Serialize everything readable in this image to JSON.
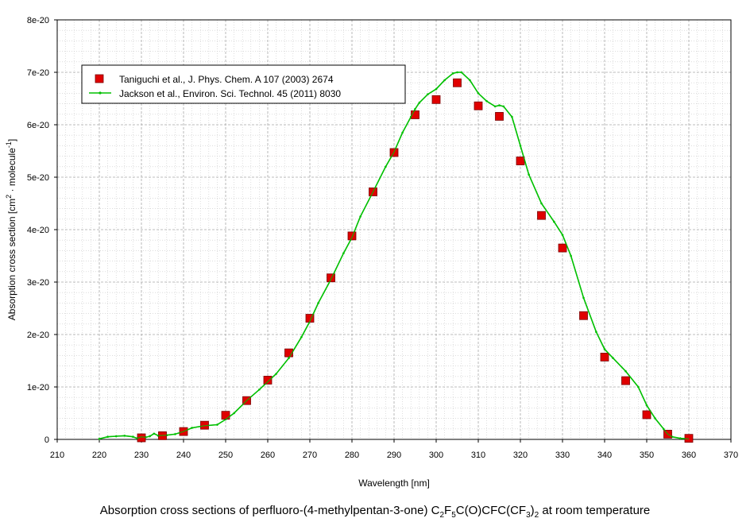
{
  "chart_data": {
    "type": "scatter",
    "xlabel": "Wavelength [nm]",
    "ylabel": "Absorption cross section [cm² · molecule⁻¹]",
    "xlim": [
      210,
      370
    ],
    "ylim": [
      0,
      8e-20
    ],
    "x_ticks": [
      "210",
      "220",
      "230",
      "240",
      "250",
      "260",
      "270",
      "280",
      "290",
      "300",
      "310",
      "320",
      "330",
      "340",
      "350",
      "360",
      "370"
    ],
    "y_ticks": [
      "0",
      "1e-20",
      "2e-20",
      "3e-20",
      "4e-20",
      "5e-20",
      "6e-20",
      "7e-20",
      "8e-20"
    ],
    "grid": true,
    "legend_position": "top-left",
    "series": [
      {
        "name": "Taniguchi et al., J. Phys. Chem. A 107 (2003) 2674",
        "style": "markers",
        "marker": "square",
        "color": "#e00000",
        "x": [
          230,
          235,
          240,
          245,
          250,
          255,
          260,
          265,
          270,
          275,
          280,
          285,
          290,
          295,
          300,
          305,
          310,
          315,
          320,
          325,
          330,
          335,
          340,
          345,
          350,
          355,
          360
        ],
        "values": [
          3e-22,
          7e-22,
          1.5e-21,
          2.7e-21,
          4.6e-21,
          7.4e-21,
          1.13e-20,
          1.65e-20,
          2.31e-20,
          3.08e-20,
          3.88e-20,
          4.72e-20,
          5.47e-20,
          6.19e-20,
          6.48e-20,
          6.8e-20,
          6.36e-20,
          6.16e-20,
          5.31e-20,
          4.27e-20,
          3.65e-20,
          2.36e-20,
          1.57e-20,
          1.12e-20,
          4.7e-21,
          1e-21,
          2e-22
        ]
      },
      {
        "name": "Jackson et al., Environ. Sci. Technol. 45 (2011) 8030",
        "style": "line",
        "color": "#00c000",
        "x": [
          220,
          222,
          224,
          226,
          228,
          229,
          230,
          231,
          232,
          233,
          234,
          236,
          238,
          240,
          242,
          245,
          248,
          250,
          252,
          255,
          258,
          260,
          262,
          265,
          268,
          270,
          272,
          275,
          278,
          280,
          282,
          285,
          288,
          290,
          292,
          294,
          295,
          296,
          298,
          300,
          302,
          304,
          305,
          306,
          308,
          310,
          312,
          314,
          315,
          316,
          318,
          320,
          322,
          325,
          328,
          330,
          332,
          335,
          338,
          340,
          342,
          345,
          348,
          350,
          352,
          354,
          355,
          356,
          358,
          360
        ],
        "values": [
          1e-22,
          5e-22,
          6e-22,
          7e-22,
          5e-22,
          2e-22,
          5e-22,
          4e-22,
          6e-22,
          1.1e-21,
          7e-22,
          8e-22,
          1e-21,
          1.5e-21,
          2.2e-21,
          2.6e-21,
          2.8e-21,
          3.8e-21,
          5e-21,
          7.4e-21,
          9.5e-21,
          1.1e-20,
          1.25e-20,
          1.55e-20,
          1.95e-20,
          2.25e-20,
          2.6e-20,
          3.05e-20,
          3.55e-20,
          3.85e-20,
          4.25e-20,
          4.72e-20,
          5.2e-20,
          5.48e-20,
          5.85e-20,
          6.15e-20,
          6.3e-20,
          6.42e-20,
          6.58e-20,
          6.68e-20,
          6.85e-20,
          6.98e-20,
          7e-20,
          7e-20,
          6.85e-20,
          6.6e-20,
          6.45e-20,
          6.35e-20,
          6.37e-20,
          6.35e-20,
          6.15e-20,
          5.6e-20,
          5.05e-20,
          4.5e-20,
          4.15e-20,
          3.9e-20,
          3.5e-20,
          2.7e-20,
          2.05e-20,
          1.72e-20,
          1.55e-20,
          1.3e-20,
          1e-20,
          6.5e-21,
          4e-21,
          2e-21,
          1e-21,
          5e-22,
          2e-22,
          1e-22
        ]
      }
    ]
  },
  "caption": {
    "main": "Absorption cross sections of perfluoro-(4-methylpentan-3-one) C",
    "s1": "2",
    "p1": "F",
    "s2": "5",
    "p2": "C(O)CFC(CF",
    "s3": "3",
    "p3": ")",
    "s4": "2",
    "tail": " at room temperature"
  }
}
